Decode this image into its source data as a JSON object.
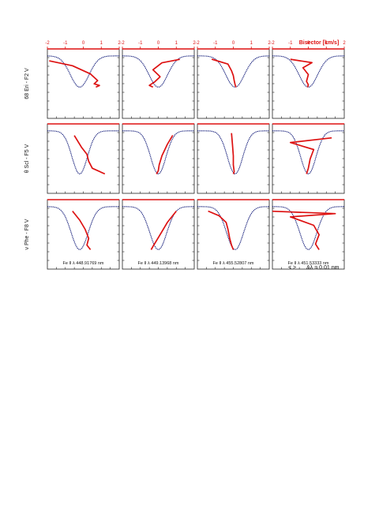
{
  "figure": {
    "bisector_label": "Bisector [km/s]",
    "scale_arrows": "<  >",
    "scale_note": "Δλ = 0.01 nm",
    "colors": {
      "profile": "#1a237e",
      "bisector": "#dd1111",
      "axis": "#dd1111",
      "frame": "#222222"
    }
  },
  "chart_data": {
    "type": "line",
    "title": "",
    "xlabel": "Bisector [km/s]",
    "xlim": [
      -2,
      2
    ],
    "xticks": [
      "-2",
      "-1",
      "0",
      "1",
      "2"
    ],
    "rows": [
      {
        "label": "68 Eri  -  F2 V",
        "depth": 0.45,
        "width": 1.15
      },
      {
        "label": "θ Scl  -  F5 V",
        "depth": 0.62,
        "width": 0.95
      },
      {
        "label": "ν Phe  -  F8 V",
        "depth": 0.62,
        "width": 1.05
      }
    ],
    "columns": [
      {
        "label": "Fe II  λ 448.91769 nm",
        "center": -0.2
      },
      {
        "label": "Fe II  λ 449.13968 nm",
        "center": 0.0
      },
      {
        "label": "Fe II  λ 455.52807 nm",
        "center": 0.1
      },
      {
        "label": "Fe II  λ 451.53333 nm",
        "center": 0.0
      }
    ],
    "bisectors": [
      [
        {
          "depth": [
            0.15,
            0.3,
            0.55,
            0.75,
            0.85,
            0.9,
            0.95
          ],
          "velocity": [
            -1.9,
            -0.6,
            0.4,
            0.8,
            0.6,
            0.9,
            0.7
          ]
        },
        {
          "depth": [
            0.1,
            0.2,
            0.4,
            0.6,
            0.75,
            0.85,
            0.9
          ],
          "velocity": [
            1.2,
            0.2,
            -0.3,
            0.1,
            -0.2,
            -0.5,
            -0.3
          ]
        },
        {
          "depth": [
            0.1,
            0.25,
            0.45,
            0.6,
            0.75,
            0.88,
            0.95
          ],
          "velocity": [
            -1.2,
            -0.3,
            -0.1,
            0.0,
            0.05,
            0.1,
            0.15
          ]
        },
        {
          "depth": [
            0.1,
            0.2,
            0.35,
            0.55,
            0.75,
            0.85,
            0.92
          ],
          "velocity": [
            -1.0,
            0.2,
            -0.3,
            0.0,
            -0.1,
            0.0,
            -0.05
          ]
        }
      ],
      [
        {
          "depth": [
            0.1,
            0.35,
            0.5,
            0.65,
            0.8,
            0.92
          ],
          "velocity": [
            -0.5,
            -0.1,
            0.2,
            0.3,
            0.5,
            1.2
          ]
        },
        {
          "depth": [
            0.1,
            0.3,
            0.55,
            0.75,
            0.88,
            0.95
          ],
          "velocity": [
            0.8,
            0.5,
            0.2,
            0.05,
            0.0,
            -0.1
          ]
        },
        {
          "depth": [
            0.05,
            0.3,
            0.55,
            0.75,
            0.9,
            0.95
          ],
          "velocity": [
            -0.1,
            -0.05,
            0.0,
            0.0,
            0.05,
            0.0
          ]
        },
        {
          "depth": [
            0.15,
            0.25,
            0.4,
            0.6,
            0.8,
            0.92
          ],
          "velocity": [
            1.3,
            -1.0,
            0.3,
            0.1,
            0.0,
            -0.1
          ]
        }
      ],
      [
        {
          "depth": [
            0.1,
            0.3,
            0.5,
            0.7,
            0.85,
            0.95
          ],
          "velocity": [
            -0.6,
            -0.2,
            0.1,
            0.3,
            0.2,
            0.4
          ]
        },
        {
          "depth": [
            0.1,
            0.35,
            0.55,
            0.75,
            0.88,
            0.95
          ],
          "velocity": [
            1.0,
            0.5,
            0.2,
            -0.1,
            -0.3,
            -0.4
          ]
        },
        {
          "depth": [
            0.1,
            0.2,
            0.35,
            0.5,
            0.7,
            0.85,
            0.95
          ],
          "velocity": [
            -1.4,
            -0.8,
            -0.4,
            -0.3,
            -0.2,
            -0.1,
            0.0
          ]
        },
        {
          "depth": [
            0.1,
            0.15,
            0.22,
            0.4,
            0.6,
            0.8,
            0.92
          ],
          "velocity": [
            -2.0,
            1.5,
            -1.0,
            0.3,
            0.6,
            0.4,
            0.6
          ]
        }
      ]
    ]
  }
}
